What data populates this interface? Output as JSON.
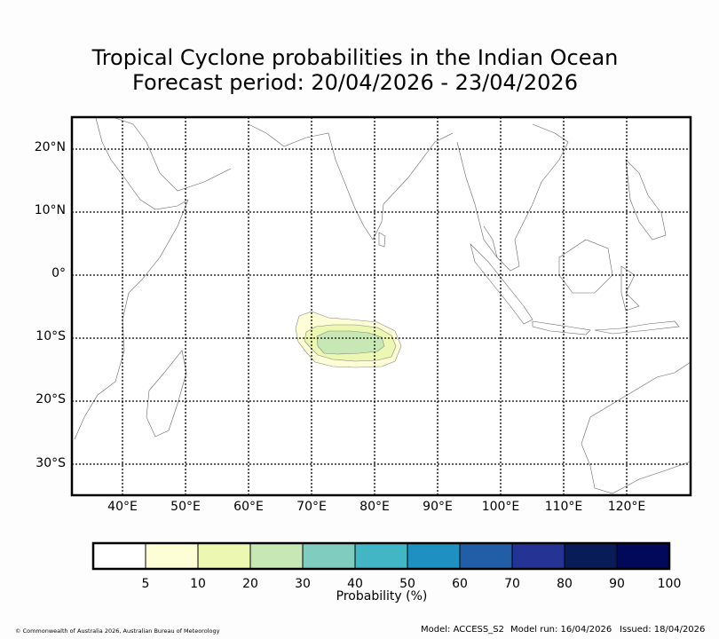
{
  "title": {
    "line1": "Tropical Cyclone probabilities in the Indian Ocean",
    "line2": "Forecast period: 20/04/2026 - 23/04/2026"
  },
  "map": {
    "lat_labels": [
      "20°N",
      "10°N",
      "0°",
      "10°S",
      "20°S",
      "30°S"
    ],
    "lon_labels": [
      "40°E",
      "50°E",
      "60°E",
      "70°E",
      "80°E",
      "90°E",
      "100°E",
      "110°E",
      "120°E"
    ],
    "probability_region": {
      "center_lon": 76.5,
      "center_lat": -10.5,
      "levels_percent": [
        5,
        10,
        20
      ]
    }
  },
  "colorbar": {
    "label": "Probability (%)",
    "ticks": [
      "5",
      "10",
      "20",
      "30",
      "40",
      "50",
      "60",
      "70",
      "80",
      "90",
      "100"
    ],
    "colors": [
      "#ffffff",
      "#fefed6",
      "#ecf7b1",
      "#c7e8b4",
      "#80cdc0",
      "#42b6c5",
      "#1e91c1",
      "#225da8",
      "#253494",
      "#081d58",
      "#03095a"
    ]
  },
  "footer": {
    "copyright": "© Commonwealth of Australia 2026, Australian Bureau of Meteorology",
    "model": "Model: ACCESS_S2",
    "model_run": "Model run: 16/04/2026",
    "issued": "Issued: 18/04/2026"
  }
}
